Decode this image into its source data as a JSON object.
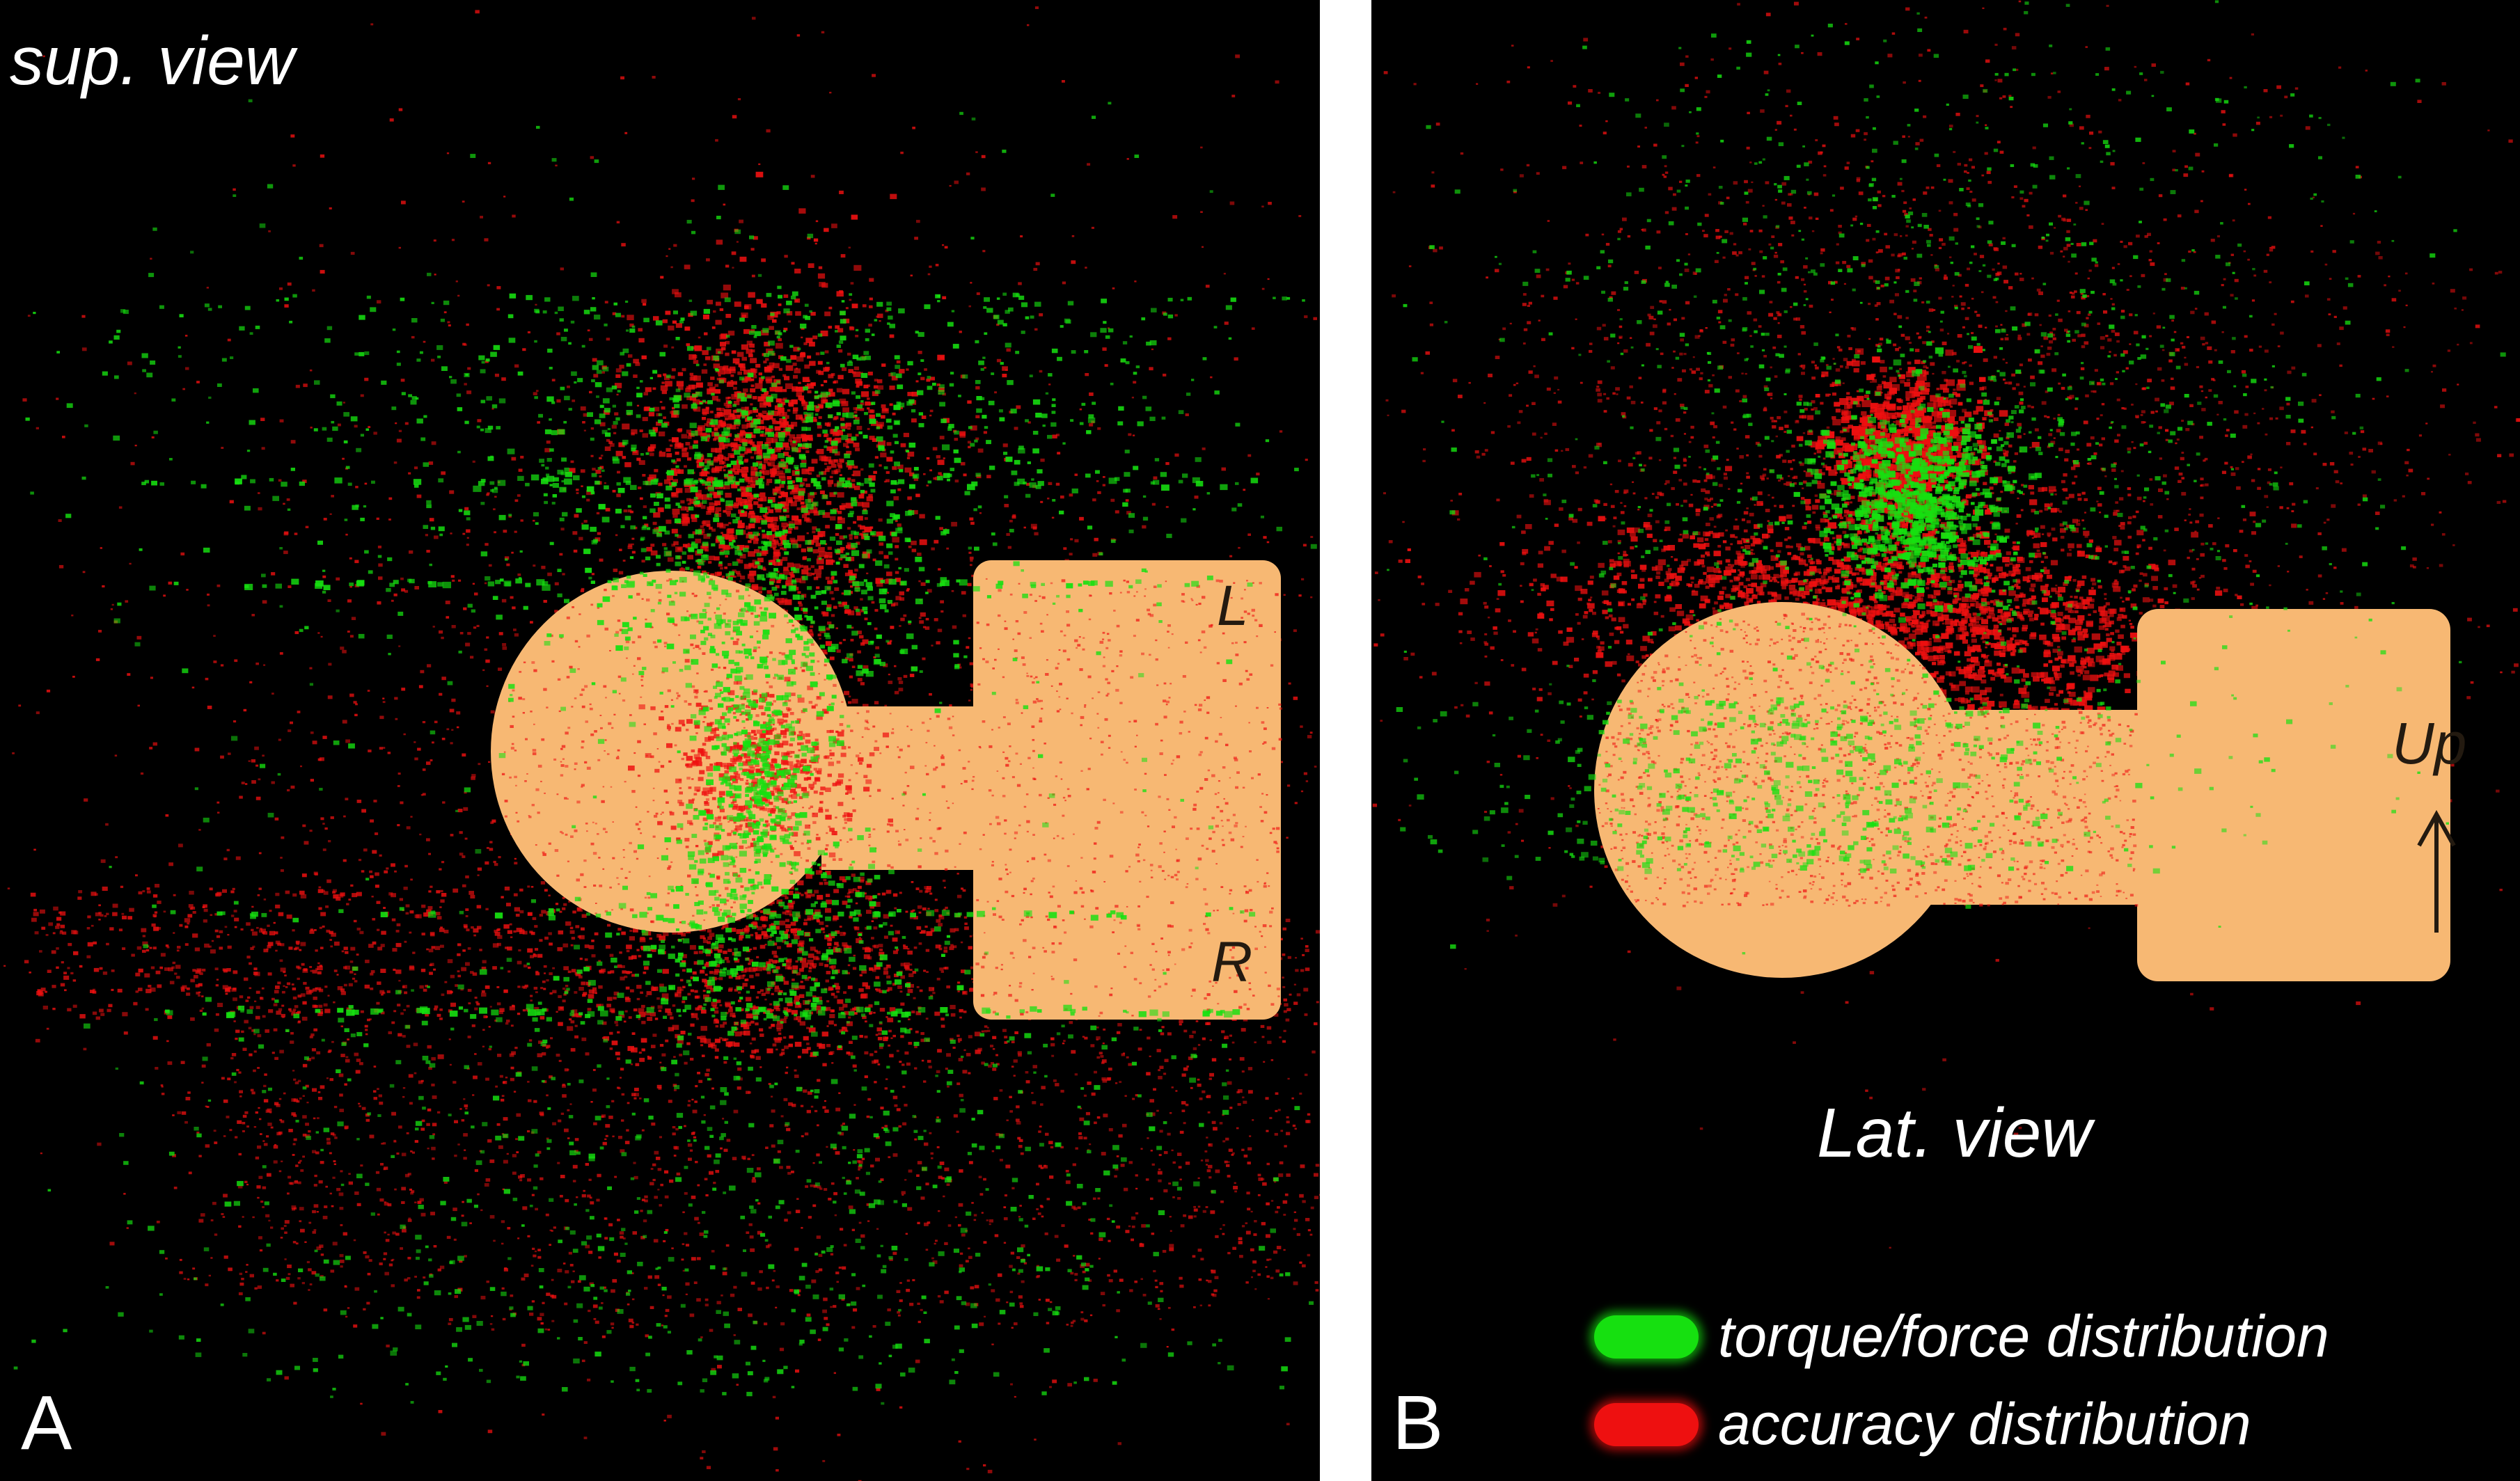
{
  "panel_a": {
    "view_label": "sup. view",
    "panel_letter": "A",
    "label_left": "L",
    "label_right": "R"
  },
  "panel_b": {
    "view_label": "Lat. view",
    "panel_letter": "B",
    "label_up": "Up"
  },
  "legend": {
    "items": [
      {
        "label": "torque/force distribution",
        "color": "#16e010"
      },
      {
        "label": "accuracy distribution",
        "color": "#ee1010"
      }
    ]
  },
  "colors": {
    "background": "#000000",
    "hand_model": "#f7b873",
    "torque": "#16e010",
    "accuracy": "#ee1010",
    "divider": "#ffffff"
  }
}
